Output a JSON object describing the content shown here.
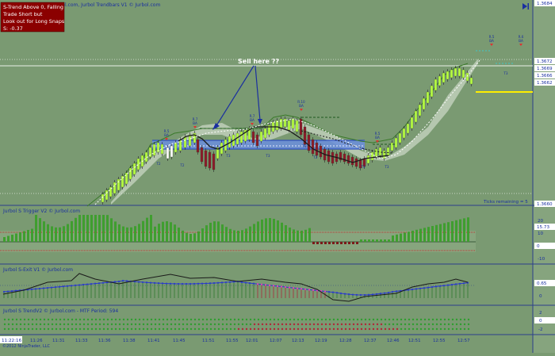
{
  "titles": {
    "main": "Jurbol SRT LineV1 © Jurbol.com,  Jurbol Trendbars V1 © Jurbol.com",
    "trigger": "Jurbol S Trigger V2 © Jurbol.com",
    "sexit": "Jurbol S-Exit V1 © Jurbol.com",
    "trend": "Jurbol S TrendV2 © Jurbol.com - MTF Period: 594"
  },
  "alert": {
    "line1": "S-Trend Above 0, Falling",
    "line2": "Trade Short but",
    "line3": "Look out for Long Snaps",
    "line4": "S: -0.37"
  },
  "annotation": {
    "sell_here": "Sell here ??"
  },
  "ticks_remaining": "Ticks remaining = 5",
  "price_axis": {
    "top": "1.3684",
    "labels": [
      "1.3672",
      "1.3669",
      "1.3666",
      "1.3662"
    ],
    "cut_label": "1.3660"
  },
  "trigger_axis": {
    "labels": [
      "20",
      "15.73",
      "10",
      "0",
      "-10"
    ]
  },
  "sexit_axis": {
    "labels": [
      "0.65",
      "0"
    ]
  },
  "trend_axis": {
    "labels": [
      "2",
      "0",
      "-2"
    ]
  },
  "time_axis": {
    "first": "11:22:16",
    "labels": [
      "11:26",
      "11:31",
      "11:33",
      "11:36",
      "11:38",
      "11:41",
      "11:45",
      "11:51",
      "11:55",
      "12:01",
      "12:07",
      "12:13",
      "12:19",
      "12:28",
      "12:37",
      "12:46",
      "12:51",
      "12:55",
      "12:57"
    ]
  },
  "signal_tags": [
    {
      "top": "R.5",
      "bottom": "BA"
    },
    {
      "top": "R.7",
      "bottom": "BA"
    },
    {
      "top": "R.7",
      "bottom": "BA"
    },
    {
      "top": "R.10",
      "bottom": "BA"
    },
    {
      "top": "R.5",
      "bottom": "BA"
    },
    {
      "top": "R.5",
      "bottom": "BA"
    },
    {
      "top": "R.6",
      "bottom": "BA"
    }
  ],
  "target_tags": [
    "T2",
    "T2",
    "T3",
    "T3",
    "T3",
    "T2",
    "T3",
    "T3",
    "T3"
  ],
  "footer": "©2012 NinjaTrader, LLC",
  "colors": {
    "background": "#7a9a72",
    "bull_bar": "#b8ff44",
    "bear_bar": "#8b1a2a",
    "histogram": "#3f9e2f",
    "alert_box": "#8b0000",
    "channel": "#6b8ede",
    "target_line": "#ffee00"
  }
}
